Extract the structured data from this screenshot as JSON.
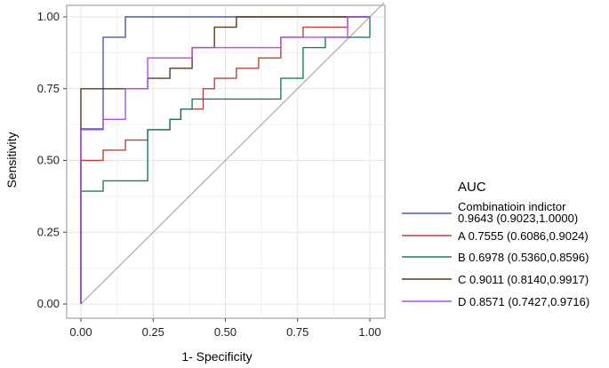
{
  "chart_data": {
    "type": "line",
    "title": "",
    "xlabel": "1- Specificity",
    "ylabel": "Sensitivity",
    "xlim": [
      0,
      1
    ],
    "ylim": [
      0,
      1
    ],
    "xticks": [
      "0.00",
      "0.25",
      "0.50",
      "0.75",
      "1.00"
    ],
    "yticks": [
      "0.00",
      "0.25",
      "0.50",
      "0.75",
      "1.00"
    ],
    "grid": true,
    "legend_title": "AUC",
    "legend_position": "right",
    "reference_line": {
      "color": "#b5b5b5",
      "from": [
        0,
        0
      ],
      "to": [
        1,
        1
      ]
    },
    "series": [
      {
        "name_lines": [
          "Combinatioin indictor",
          "0.9643 (0.9023,1.0000)"
        ],
        "color": "#4a5aa8",
        "points": [
          [
            0,
            0
          ],
          [
            0,
            0.61
          ],
          [
            0.077,
            0.61
          ],
          [
            0.077,
            0.929
          ],
          [
            0.154,
            0.929
          ],
          [
            0.154,
            1
          ],
          [
            1,
            1
          ]
        ]
      },
      {
        "name_lines": [
          "A 0.7555 (0.6086,0.9024)"
        ],
        "color": "#c0403a",
        "points": [
          [
            0,
            0
          ],
          [
            0,
            0.5
          ],
          [
            0.077,
            0.5
          ],
          [
            0.077,
            0.536
          ],
          [
            0.154,
            0.536
          ],
          [
            0.154,
            0.571
          ],
          [
            0.231,
            0.571
          ],
          [
            0.231,
            0.607
          ],
          [
            0.308,
            0.607
          ],
          [
            0.308,
            0.643
          ],
          [
            0.346,
            0.643
          ],
          [
            0.346,
            0.679
          ],
          [
            0.423,
            0.679
          ],
          [
            0.423,
            0.75
          ],
          [
            0.462,
            0.75
          ],
          [
            0.462,
            0.786
          ],
          [
            0.538,
            0.786
          ],
          [
            0.538,
            0.821
          ],
          [
            0.615,
            0.821
          ],
          [
            0.615,
            0.857
          ],
          [
            0.692,
            0.857
          ],
          [
            0.692,
            0.929
          ],
          [
            0.769,
            0.929
          ],
          [
            0.769,
            0.964
          ],
          [
            0.923,
            0.964
          ],
          [
            0.923,
            1
          ],
          [
            1,
            1
          ]
        ]
      },
      {
        "name_lines": [
          "B 0.6978 (0.5360,0.8596)"
        ],
        "color": "#1c7a6c",
        "points": [
          [
            0,
            0
          ],
          [
            0,
            0.393
          ],
          [
            0.077,
            0.393
          ],
          [
            0.077,
            0.429
          ],
          [
            0.231,
            0.429
          ],
          [
            0.231,
            0.607
          ],
          [
            0.308,
            0.607
          ],
          [
            0.308,
            0.643
          ],
          [
            0.346,
            0.643
          ],
          [
            0.346,
            0.679
          ],
          [
            0.385,
            0.679
          ],
          [
            0.385,
            0.714
          ],
          [
            0.538,
            0.714
          ],
          [
            0.538,
            0.75
          ],
          [
            0.615,
            0.75
          ],
          [
            0.615,
            0.714
          ],
          [
            0.538,
            0.714
          ]
        ],
        "points_clean": [
          [
            0,
            0
          ],
          [
            0,
            0.393
          ],
          [
            0.077,
            0.393
          ],
          [
            0.077,
            0.429
          ],
          [
            0.231,
            0.429
          ],
          [
            0.231,
            0.607
          ],
          [
            0.308,
            0.607
          ],
          [
            0.308,
            0.643
          ],
          [
            0.346,
            0.643
          ],
          [
            0.346,
            0.679
          ],
          [
            0.385,
            0.679
          ],
          [
            0.385,
            0.714
          ],
          [
            0.692,
            0.714
          ],
          [
            0.692,
            0.786
          ],
          [
            0.769,
            0.786
          ],
          [
            0.769,
            0.821
          ],
          [
            0.769,
            0.857
          ],
          [
            0.769,
            0.893
          ],
          [
            0.846,
            0.893
          ],
          [
            0.846,
            0.929
          ],
          [
            1,
            0.929
          ],
          [
            1,
            1
          ]
        ]
      },
      {
        "name_lines": [
          "C 0.9011 (0.8140,0.9917)"
        ],
        "color": "#5a3a1a",
        "points": [
          [
            0,
            0
          ],
          [
            0,
            0.75
          ],
          [
            0.077,
            0.75
          ],
          [
            0.077,
            0.75
          ],
          [
            0.231,
            0.75
          ],
          [
            0.231,
            0.786
          ],
          [
            0.308,
            0.786
          ],
          [
            0.308,
            0.821
          ],
          [
            0.385,
            0.821
          ],
          [
            0.385,
            0.893
          ],
          [
            0.462,
            0.893
          ],
          [
            0.462,
            0.964
          ],
          [
            0.538,
            0.964
          ],
          [
            0.538,
            1
          ],
          [
            1,
            1
          ]
        ]
      },
      {
        "name_lines": [
          "D 0.8571 (0.7427,0.9716)"
        ],
        "color": "#b44ee8",
        "points": [
          [
            0,
            0
          ],
          [
            0,
            0.607
          ],
          [
            0.077,
            0.607
          ],
          [
            0.077,
            0.643
          ],
          [
            0.154,
            0.643
          ],
          [
            0.154,
            0.75
          ],
          [
            0.231,
            0.75
          ],
          [
            0.231,
            0.857
          ],
          [
            0.385,
            0.857
          ],
          [
            0.385,
            0.893
          ],
          [
            0.692,
            0.893
          ],
          [
            0.692,
            0.929
          ],
          [
            0.923,
            0.929
          ],
          [
            0.923,
            1
          ],
          [
            1,
            1
          ]
        ]
      }
    ]
  }
}
